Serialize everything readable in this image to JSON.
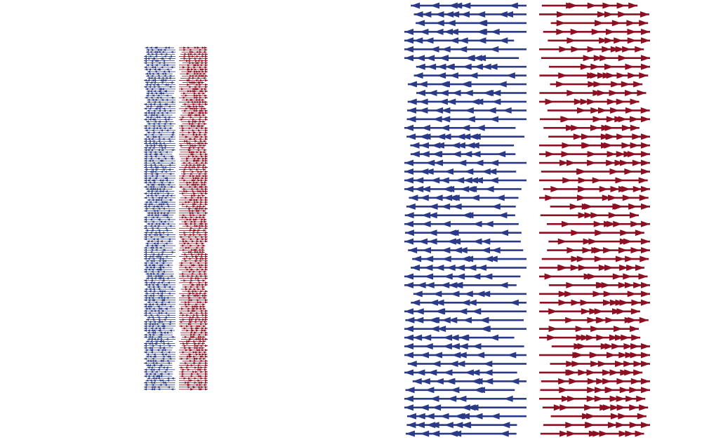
{
  "scene": {
    "subject": "arrow-field",
    "colors": {
      "background": "#ffffff",
      "left_pointing": "#2b3a86",
      "right_pointing": "#8c0f22"
    }
  },
  "panels": [
    {
      "name": "small-arrow-panel",
      "columns": [
        {
          "name": "small-blue-column",
          "direction": "left",
          "color": "#2b3a86"
        },
        {
          "name": "small-red-column",
          "direction": "right",
          "color": "#8c0f22"
        }
      ]
    },
    {
      "name": "large-arrow-panel",
      "columns": [
        {
          "name": "large-blue-column",
          "direction": "left",
          "color": "#2b3a86"
        },
        {
          "name": "large-red-column",
          "direction": "right",
          "color": "#8c0f22"
        }
      ]
    }
  ]
}
